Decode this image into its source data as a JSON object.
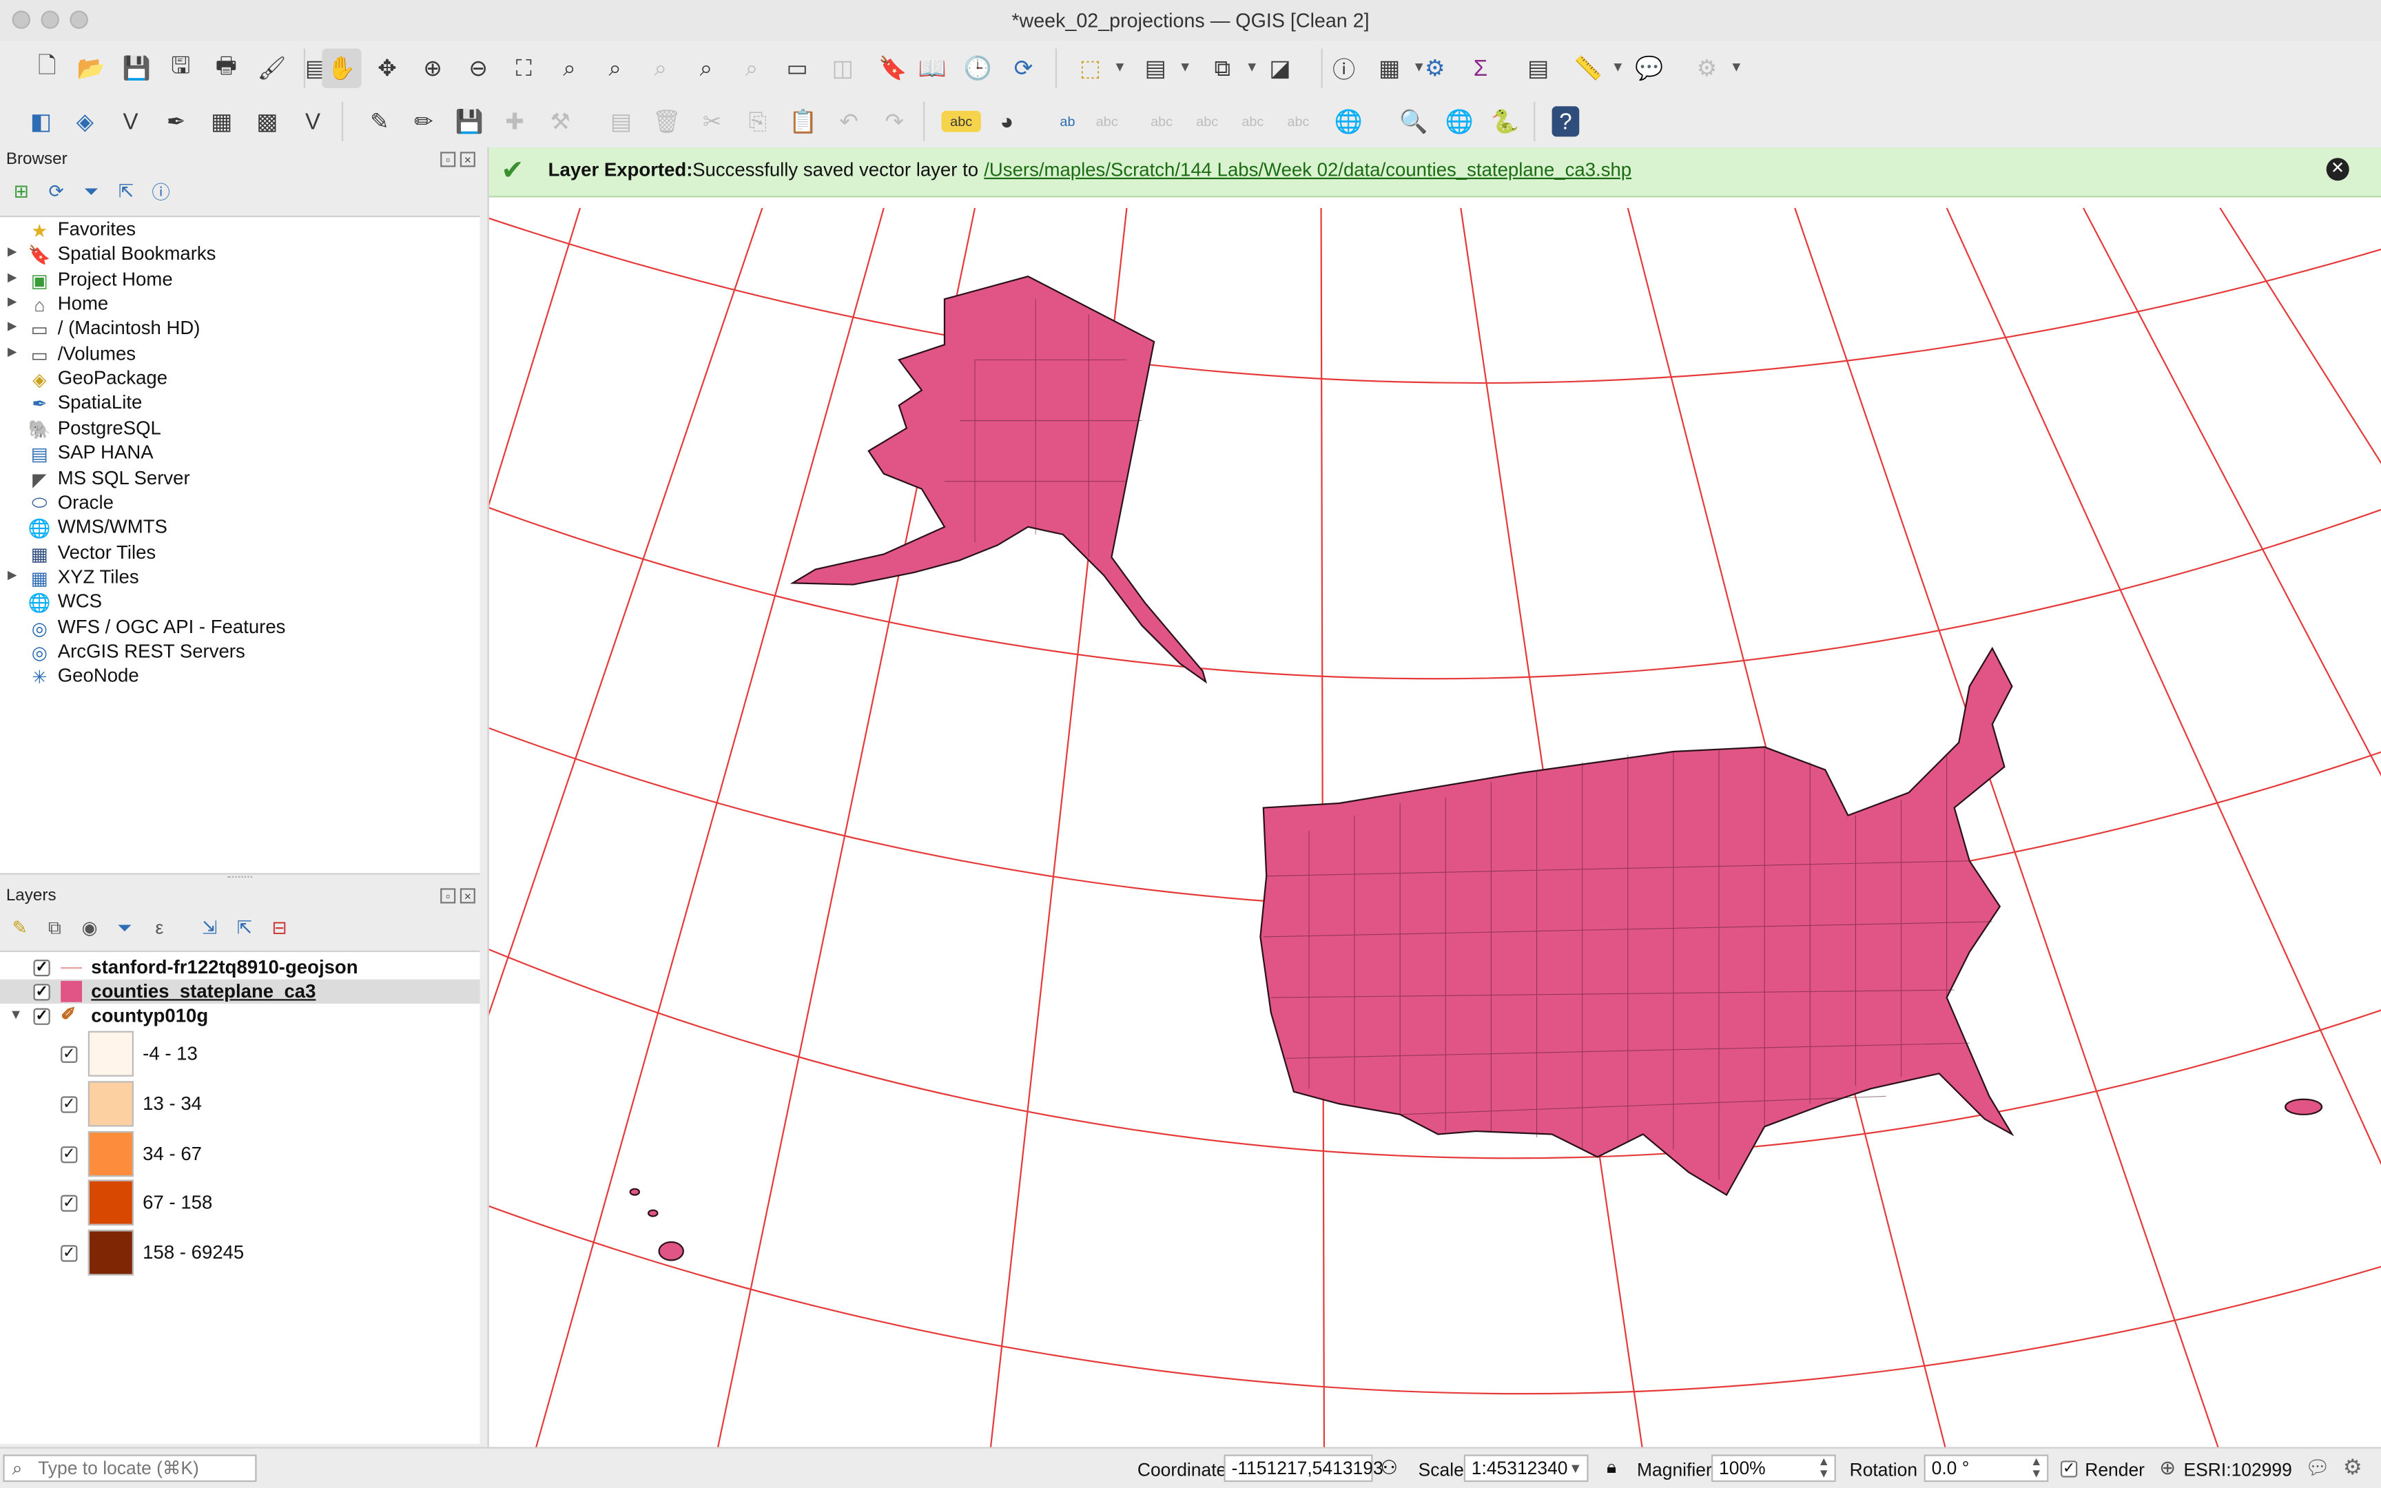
{
  "window": {
    "title": "*week_02_projections — QGIS [Clean 2]"
  },
  "toolbar1": {
    "icons": [
      "new-project-icon",
      "open-project-icon",
      "save-project-icon",
      "save-as-icon",
      "print-layout-icon",
      "style-manager-icon",
      "layout-manager-icon",
      "pan-icon",
      "pan-to-selection-icon",
      "zoom-in-icon",
      "zoom-out-icon",
      "zoom-full-icon",
      "zoom-to-selection-icon",
      "zoom-to-layer-icon",
      "zoom-native-icon",
      "zoom-last-icon",
      "zoom-next-icon",
      "new-map-view-icon",
      "new-3d-view-icon",
      "bookmark-new-icon",
      "show-bookmarks-icon",
      "temporal-icon",
      "refresh-icon",
      "select-features-icon",
      "select-attribute-icon",
      "deselect-icon",
      "select-location-icon",
      "identify-icon",
      "attribute-table-icon",
      "toolbox-icon",
      "statistics-icon",
      "open-field-calc-icon",
      "measure-icon",
      "map-tips-icon",
      "plugins-icon"
    ]
  },
  "toolbar2": {
    "icons": [
      "data-source-manager-icon",
      "new-geopackage-icon",
      "new-shapefile-icon",
      "digitize-icon",
      "new-spatialite-icon",
      "new-virtual-icon",
      "new-mesh-icon",
      "current-edits-icon",
      "toggle-editing-icon",
      "save-edits-icon",
      "add-feature-icon",
      "vertex-tool-icon",
      "modify-attr-icon",
      "delete-selected-icon",
      "cut-icon",
      "copy-icon",
      "paste-icon",
      "undo-icon",
      "redo-icon",
      "label-toolbar-icon",
      "layer-diagram-icon",
      "highlight-pinned-icon",
      "show-hide-labels-icon",
      "pin-label-icon",
      "move-label-icon",
      "rotate-label-icon",
      "change-label-icon",
      "wms-icon",
      "metasearch-icon",
      "locate-icon",
      "python-icon",
      "help-icon"
    ]
  },
  "browser": {
    "title": "Browser",
    "items": [
      {
        "label": "Favorites",
        "icon": "star-icon",
        "expandable": false
      },
      {
        "label": "Spatial Bookmarks",
        "icon": "bookmark-icon",
        "expandable": true
      },
      {
        "label": "Project Home",
        "icon": "project-home-icon",
        "expandable": true
      },
      {
        "label": "Home",
        "icon": "home-icon",
        "expandable": true
      },
      {
        "label": "/ (Macintosh HD)",
        "icon": "folder-icon",
        "expandable": true
      },
      {
        "label": "/Volumes",
        "icon": "folder-icon",
        "expandable": true
      },
      {
        "label": "GeoPackage",
        "icon": "geopackage-icon",
        "expandable": false
      },
      {
        "label": "SpatiaLite",
        "icon": "spatialite-icon",
        "expandable": false
      },
      {
        "label": "PostgreSQL",
        "icon": "postgresql-icon",
        "expandable": false
      },
      {
        "label": "SAP HANA",
        "icon": "sap-hana-icon",
        "expandable": false
      },
      {
        "label": "MS SQL Server",
        "icon": "mssql-icon",
        "expandable": false
      },
      {
        "label": "Oracle",
        "icon": "oracle-icon",
        "expandable": false
      },
      {
        "label": "WMS/WMTS",
        "icon": "globe-icon",
        "expandable": false
      },
      {
        "label": "Vector Tiles",
        "icon": "grid-icon",
        "expandable": false
      },
      {
        "label": "XYZ Tiles",
        "icon": "tiles-icon",
        "expandable": true
      },
      {
        "label": "WCS",
        "icon": "globe-icon",
        "expandable": false
      },
      {
        "label": "WFS / OGC API - Features",
        "icon": "wfs-icon",
        "expandable": false
      },
      {
        "label": "ArcGIS REST Servers",
        "icon": "arcgis-icon",
        "expandable": false
      },
      {
        "label": "GeoNode",
        "icon": "geonode-icon",
        "expandable": false
      }
    ]
  },
  "layers": {
    "title": "Layers",
    "items": [
      {
        "label": "stanford-fr122tq8910-geojson",
        "checked": true,
        "type": "line"
      },
      {
        "label": "counties_stateplane_ca3",
        "checked": true,
        "type": "polygon",
        "selected": true
      },
      {
        "label": "countyp010g",
        "checked": true,
        "type": "graduated"
      }
    ],
    "legend": [
      {
        "label": "-4 - 13",
        "color": "#fff5eb",
        "checked": true
      },
      {
        "label": "13 - 34",
        "color": "#fdd0a2",
        "checked": true
      },
      {
        "label": "34 - 67",
        "color": "#fd8d3c",
        "checked": true
      },
      {
        "label": "67 - 158",
        "color": "#d94801",
        "checked": true
      },
      {
        "label": "158 - 69245",
        "color": "#7f2704",
        "checked": true
      }
    ]
  },
  "message": {
    "title": "Layer Exported:",
    "text": "Successfully saved vector layer to",
    "link": "/Users/maples/Scratch/144 Labs/Week 02/data/counties_stateplane_ca3.shp"
  },
  "map": {
    "fill_color": "#e05585",
    "graticule_color": "#e63a3a"
  },
  "statusbar": {
    "locate_placeholder": "Type to locate (⌘K)",
    "coordinate_label": "Coordinate",
    "coordinate_value": "-1151217,5413193",
    "scale_label": "Scale",
    "scale_value": "1:45312340",
    "magnifier_label": "Magnifier",
    "magnifier_value": "100%",
    "rotation_label": "Rotation",
    "rotation_value": "0.0 °",
    "render_label": "Render",
    "crs_label": "ESRI:102999"
  }
}
